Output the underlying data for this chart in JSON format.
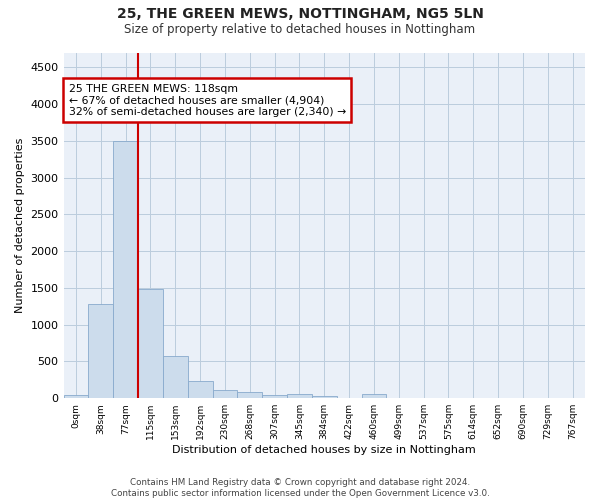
{
  "title": "25, THE GREEN MEWS, NOTTINGHAM, NG5 5LN",
  "subtitle": "Size of property relative to detached houses in Nottingham",
  "xlabel": "Distribution of detached houses by size in Nottingham",
  "ylabel": "Number of detached properties",
  "bar_color": "#ccdcec",
  "bar_edge_color": "#88aacc",
  "grid_color": "#bbccdd",
  "bg_color": "#eaf0f8",
  "annotation_box_color": "#cc0000",
  "vline_color": "#cc0000",
  "bin_labels": [
    "0sqm",
    "38sqm",
    "77sqm",
    "115sqm",
    "153sqm",
    "192sqm",
    "230sqm",
    "268sqm",
    "307sqm",
    "345sqm",
    "384sqm",
    "422sqm",
    "460sqm",
    "499sqm",
    "537sqm",
    "575sqm",
    "614sqm",
    "652sqm",
    "690sqm",
    "729sqm",
    "767sqm"
  ],
  "bar_heights": [
    40,
    1280,
    3500,
    1480,
    580,
    240,
    115,
    80,
    50,
    55,
    35,
    0,
    60,
    0,
    0,
    0,
    0,
    0,
    0,
    0,
    0
  ],
  "vline_bin_index": 3,
  "annotation_text": "25 THE GREEN MEWS: 118sqm\n← 67% of detached houses are smaller (4,904)\n32% of semi-detached houses are larger (2,340) →",
  "ylim": [
    0,
    4700
  ],
  "yticks": [
    0,
    500,
    1000,
    1500,
    2000,
    2500,
    3000,
    3500,
    4000,
    4500
  ],
  "footer_line1": "Contains HM Land Registry data © Crown copyright and database right 2024.",
  "footer_line2": "Contains public sector information licensed under the Open Government Licence v3.0."
}
